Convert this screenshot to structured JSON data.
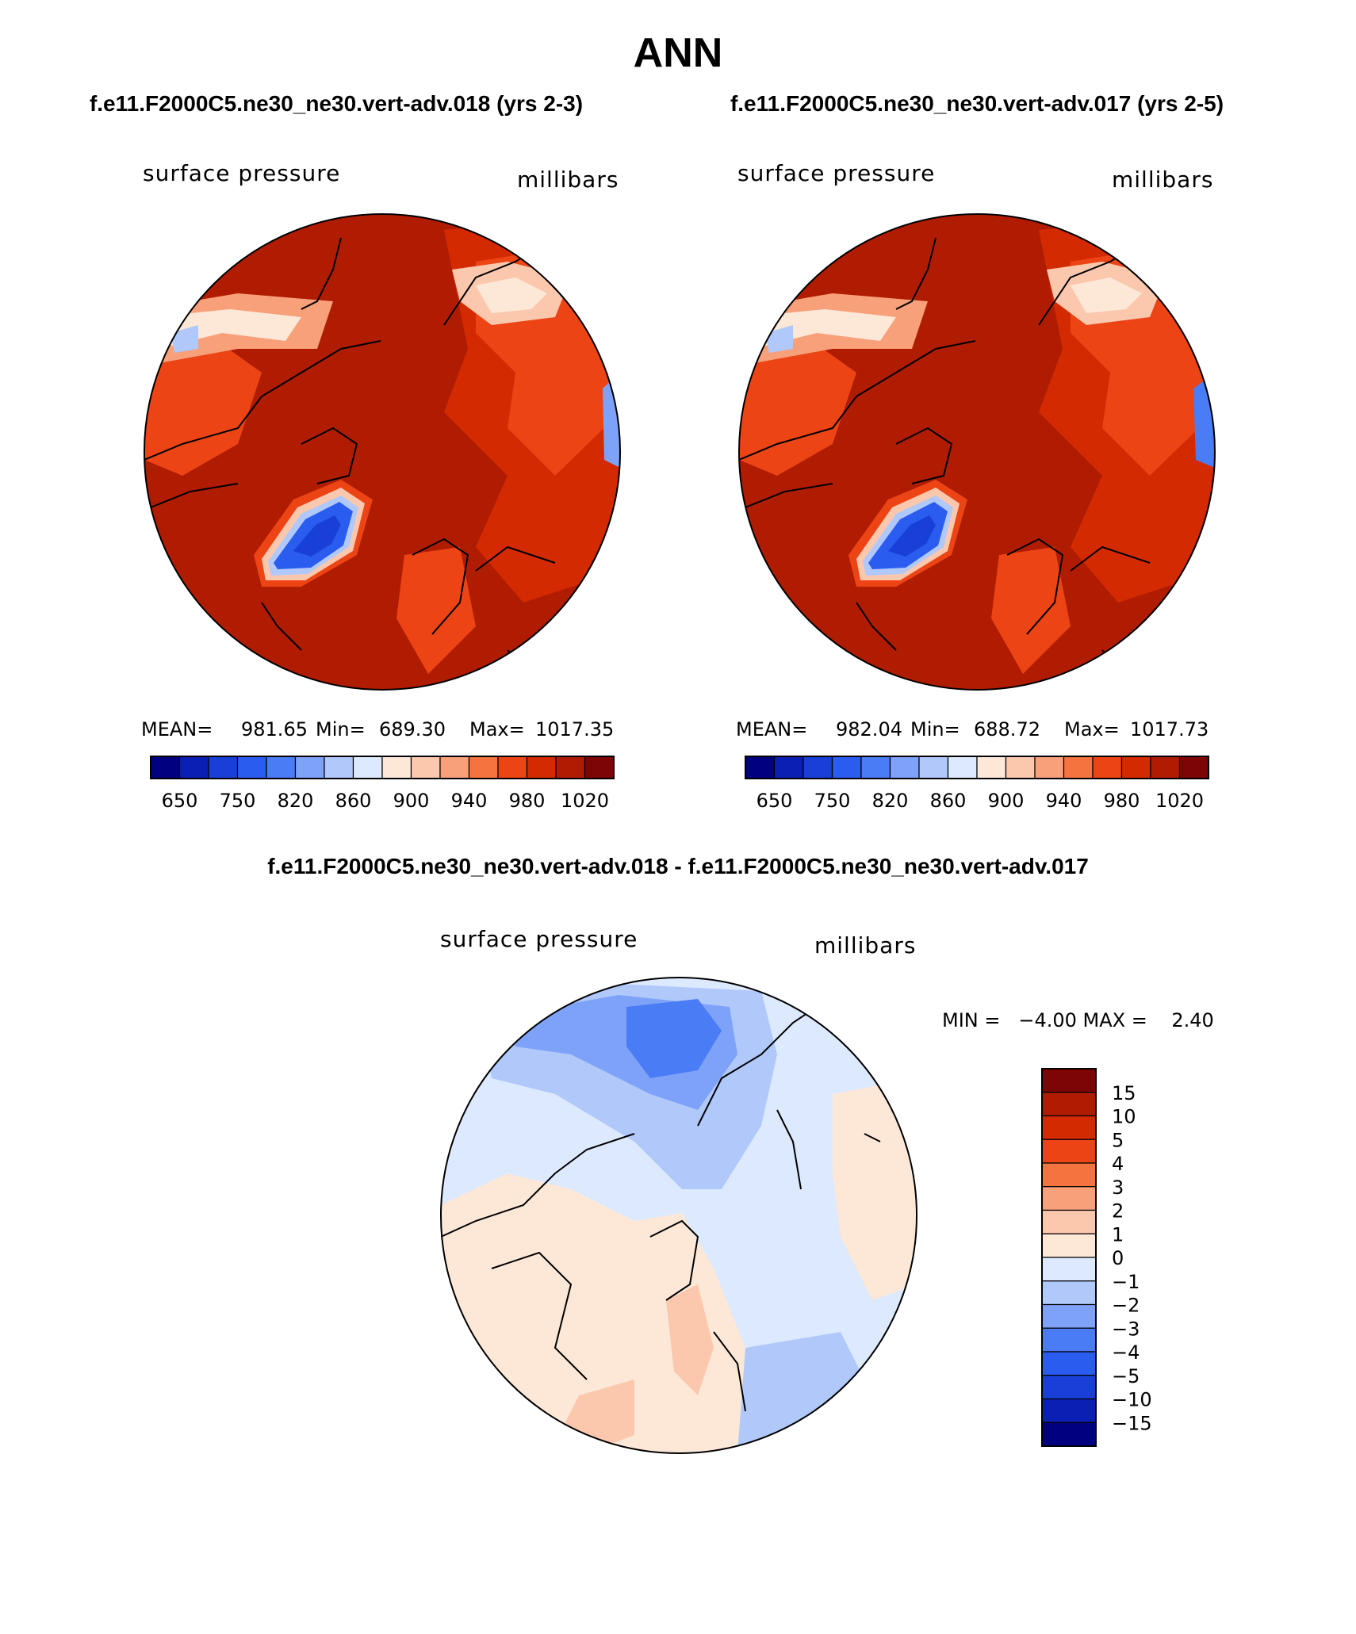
{
  "title": "ANN",
  "subtitle_left": "f.e11.F2000C5.ne30_ne30.vert-adv.018 (yrs 2-3)",
  "subtitle_right": "f.e11.F2000C5.ne30_ne30.vert-adv.017 (yrs 2-5)",
  "diff_title": "f.e11.F2000C5.ne30_ne30.vert-adv.018 - f.e11.F2000C5.ne30_ne30.vert-adv.017",
  "chart_data": [
    {
      "type": "heatmap",
      "projection": "north-polar-stereographic",
      "variable": "surface pressure",
      "units": "millibars",
      "stats": {
        "mean_label": "MEAN=",
        "mean": "981.65",
        "min_label": "Min=",
        "min": "689.30",
        "max_label": "Max=",
        "max": "1017.35"
      },
      "colorbar_orientation": "horizontal",
      "colorbar_labels": [
        "650",
        "750",
        "820",
        "860",
        "900",
        "940",
        "980",
        "1020"
      ],
      "colors": [
        "#000080",
        "#0a20b4",
        "#1840d8",
        "#2a5cf0",
        "#4a7cf5",
        "#7ea2f8",
        "#b0c8fa",
        "#dde9fe",
        "#fde8d8",
        "#fbc8ad",
        "#f8a07a",
        "#f4733f",
        "#ec4414",
        "#d42a02",
        "#b01c02",
        "#7e0505"
      ]
    },
    {
      "type": "heatmap",
      "projection": "north-polar-stereographic",
      "variable": "surface pressure",
      "units": "millibars",
      "stats": {
        "mean_label": "MEAN=",
        "mean": "982.04",
        "min_label": "Min=",
        "min": "688.72",
        "max_label": "Max=",
        "max": "1017.73"
      },
      "colorbar_orientation": "horizontal",
      "colorbar_labels": [
        "650",
        "750",
        "820",
        "860",
        "900",
        "940",
        "980",
        "1020"
      ],
      "colors": [
        "#000080",
        "#0a20b4",
        "#1840d8",
        "#2a5cf0",
        "#4a7cf5",
        "#7ea2f8",
        "#b0c8fa",
        "#dde9fe",
        "#fde8d8",
        "#fbc8ad",
        "#f8a07a",
        "#f4733f",
        "#ec4414",
        "#d42a02",
        "#b01c02",
        "#7e0505"
      ]
    },
    {
      "type": "heatmap",
      "projection": "north-polar-stereographic",
      "variable": "surface pressure",
      "units": "millibars",
      "minmax_text": "MIN =   −4.00 MAX =    2.40",
      "min": -4.0,
      "max": 2.4,
      "colorbar_orientation": "vertical",
      "colorbar_labels": [
        "15",
        "10",
        "5",
        "4",
        "3",
        "2",
        "1",
        "0",
        "−1",
        "−2",
        "−3",
        "−4",
        "−5",
        "−10",
        "−15"
      ],
      "colors": [
        "#7e0505",
        "#b01c02",
        "#d42a02",
        "#ec4414",
        "#f4733f",
        "#f8a07a",
        "#fbc8ad",
        "#fde8d8",
        "#dde9fe",
        "#b0c8fa",
        "#7ea2f8",
        "#4a7cf5",
        "#2a5cf0",
        "#1840d8",
        "#0a20b4",
        "#000080"
      ]
    }
  ]
}
